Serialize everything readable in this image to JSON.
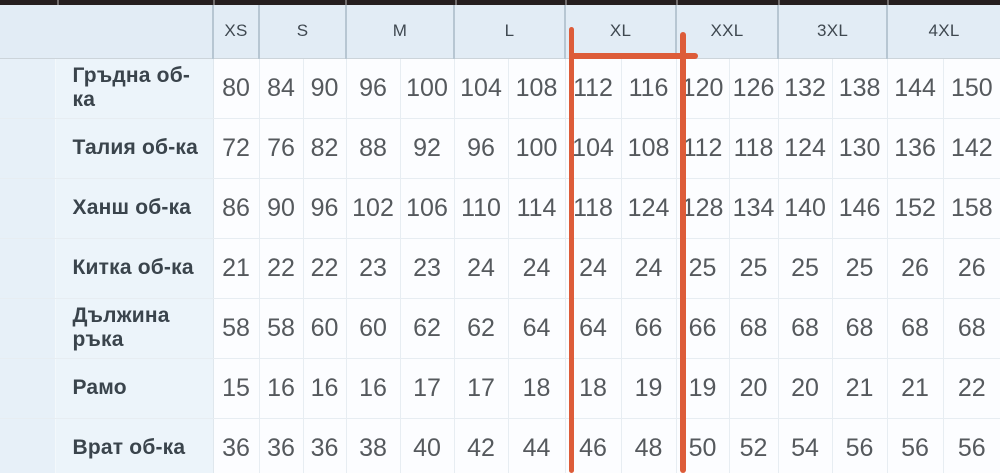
{
  "chart_data": {
    "type": "table",
    "columns": [
      "XS",
      "S",
      "M",
      "L",
      "XL",
      "XXL",
      "3XL",
      "4XL"
    ],
    "size_headers": [
      {
        "label": "XS",
        "span": 1
      },
      {
        "label": "S",
        "span": 2
      },
      {
        "label": "M",
        "span": 2
      },
      {
        "label": "L",
        "span": 2
      },
      {
        "label": "XL",
        "span": 2
      },
      {
        "label": "XXL",
        "span": 2
      },
      {
        "label": "3XL",
        "span": 2
      },
      {
        "label": "4XL",
        "span": 2
      }
    ],
    "rows": [
      {
        "label": "Гръдна об-ка",
        "values": [
          80,
          84,
          90,
          96,
          100,
          104,
          108,
          112,
          116,
          120,
          126,
          132,
          138,
          144,
          150
        ]
      },
      {
        "label": "Талия об-ка",
        "values": [
          72,
          76,
          82,
          88,
          92,
          96,
          100,
          104,
          108,
          112,
          118,
          124,
          130,
          136,
          142
        ]
      },
      {
        "label": "Ханш об-ка",
        "values": [
          86,
          90,
          96,
          102,
          106,
          110,
          114,
          118,
          124,
          128,
          134,
          140,
          146,
          152,
          158
        ]
      },
      {
        "label": "Китка об-ка",
        "values": [
          21,
          22,
          22,
          23,
          23,
          24,
          24,
          24,
          24,
          25,
          25,
          25,
          25,
          26,
          26
        ]
      },
      {
        "label": "Дължина ръка",
        "values": [
          58,
          58,
          60,
          60,
          62,
          62,
          64,
          64,
          66,
          66,
          68,
          68,
          68,
          68,
          68
        ]
      },
      {
        "label": "Рамо",
        "values": [
          15,
          16,
          16,
          16,
          17,
          17,
          18,
          18,
          19,
          19,
          20,
          20,
          21,
          21,
          22
        ]
      },
      {
        "label": "Врат об-ка",
        "values": [
          36,
          36,
          36,
          38,
          40,
          42,
          44,
          46,
          48,
          50,
          52,
          54,
          56,
          56,
          56
        ]
      }
    ]
  },
  "annotation": {
    "type": "hand-drawn-highlight",
    "highlighted_size": "XL",
    "color": "#dd5c39"
  }
}
